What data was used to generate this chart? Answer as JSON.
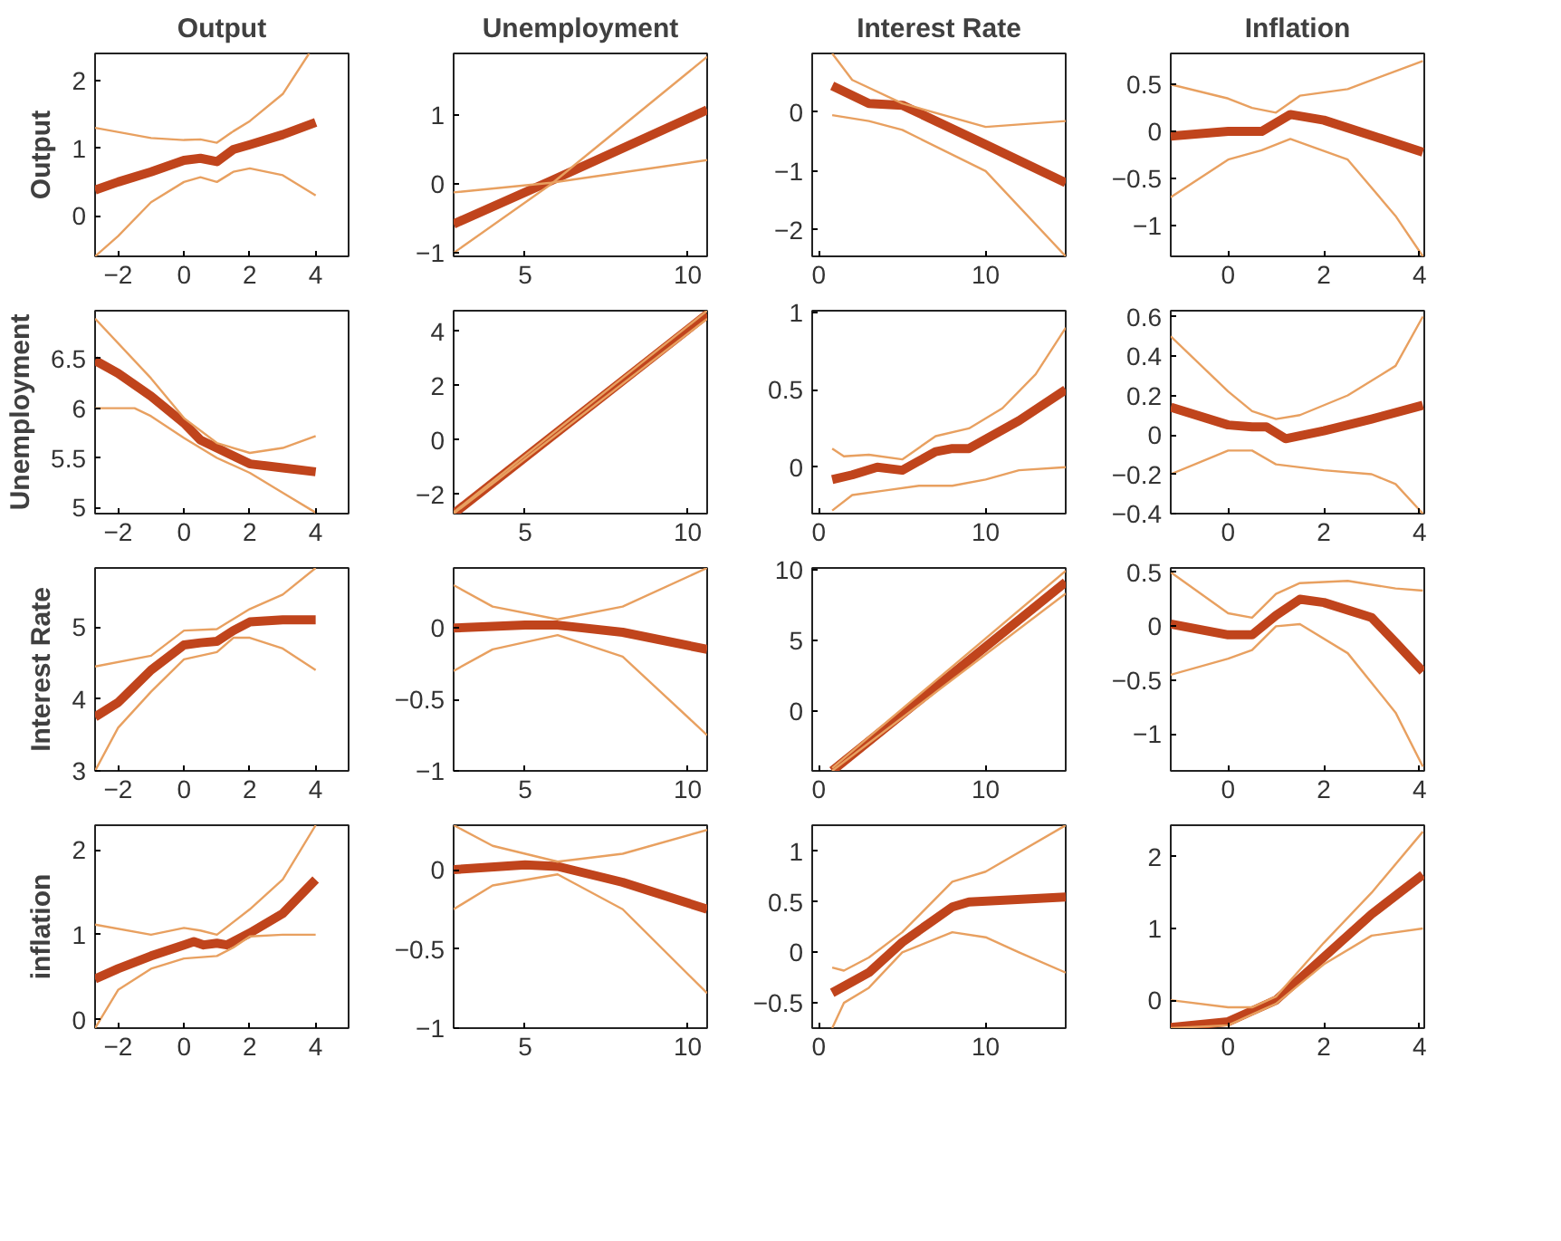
{
  "chart_data": [
    {
      "type": "line",
      "title": "Output",
      "ylabel": "Output",
      "xlim": [
        -2.7,
        5
      ],
      "xticks": [
        -2,
        0,
        2,
        4
      ],
      "ylim": [
        -0.6,
        2.4
      ],
      "yticks": [
        0,
        1,
        2
      ],
      "series": [
        {
          "color": "#c0441c",
          "x": [
            -2.7,
            -2,
            -1,
            0,
            0.5,
            1,
            1.5,
            2,
            3,
            4
          ],
          "values": [
            0.38,
            0.5,
            0.65,
            0.82,
            0.85,
            0.8,
            0.98,
            1.05,
            1.2,
            1.38
          ]
        },
        {
          "color": "#e8a060",
          "x": [
            -2.7,
            -1,
            0,
            0.5,
            1,
            1.5,
            2,
            3,
            3.8
          ],
          "values": [
            1.3,
            1.15,
            1.12,
            1.13,
            1.08,
            1.25,
            1.4,
            1.8,
            2.4
          ]
        },
        {
          "color": "#e8a060",
          "x": [
            -2.7,
            -2,
            -1,
            0,
            0.5,
            1,
            1.5,
            2,
            3,
            4
          ],
          "values": [
            -0.6,
            -0.3,
            0.2,
            0.5,
            0.57,
            0.5,
            0.65,
            0.7,
            0.6,
            0.3
          ]
        }
      ]
    },
    {
      "type": "line",
      "title": "Unemployment",
      "xlim": [
        2.8,
        10.6
      ],
      "xticks": [
        5,
        10
      ],
      "ylim": [
        -1.05,
        1.9
      ],
      "yticks": [
        -1,
        0,
        1
      ],
      "series": [
        {
          "color": "#c0441c",
          "x": [
            2.8,
            5.8,
            10.6
          ],
          "values": [
            -0.58,
            0.05,
            1.08
          ]
        },
        {
          "color": "#e8a060",
          "x": [
            2.8,
            5.8,
            10.6
          ],
          "values": [
            -0.12,
            0.02,
            0.35
          ]
        },
        {
          "color": "#e8a060",
          "x": [
            2.8,
            5.8,
            10.6
          ],
          "values": [
            -1.0,
            0.0,
            1.85
          ]
        }
      ]
    },
    {
      "type": "line",
      "title": "Interest Rate",
      "xlim": [
        -0.4,
        14.8
      ],
      "xticks": [
        0,
        10
      ],
      "ylim": [
        -2.45,
        1.0
      ],
      "yticks": [
        -2,
        -1,
        0
      ],
      "series": [
        {
          "color": "#c0441c",
          "x": [
            0.8,
            3,
            5,
            10,
            14.8
          ],
          "values": [
            0.45,
            0.15,
            0.12,
            -0.55,
            -1.2
          ]
        },
        {
          "color": "#e8a060",
          "x": [
            0.8,
            2,
            5,
            10,
            14.8
          ],
          "values": [
            1.0,
            0.55,
            0.15,
            -0.25,
            -0.15
          ]
        },
        {
          "color": "#e8a060",
          "x": [
            0.8,
            3,
            5,
            10,
            14.8
          ],
          "values": [
            -0.05,
            -0.15,
            -0.3,
            -1.0,
            -2.45
          ]
        }
      ]
    },
    {
      "type": "line",
      "title": "Inflation",
      "xlim": [
        -1.2,
        4.1
      ],
      "xticks": [
        0,
        2,
        4
      ],
      "ylim": [
        -1.33,
        0.83
      ],
      "yticks": [
        -1,
        -0.5,
        0,
        0.5
      ],
      "series": [
        {
          "color": "#c0441c",
          "x": [
            -1.2,
            0,
            0.7,
            1.3,
            2,
            4.07
          ],
          "values": [
            -0.05,
            0.0,
            0.0,
            0.18,
            0.12,
            -0.22
          ]
        },
        {
          "color": "#e8a060",
          "x": [
            -1.2,
            0,
            0.5,
            1,
            1.5,
            2.5,
            4.07
          ],
          "values": [
            0.5,
            0.35,
            0.25,
            0.2,
            0.38,
            0.45,
            0.75
          ]
        },
        {
          "color": "#e8a060",
          "x": [
            -1.2,
            0,
            0.7,
            1.3,
            2.5,
            3.5,
            4.07
          ],
          "values": [
            -0.7,
            -0.3,
            -0.2,
            -0.08,
            -0.3,
            -0.9,
            -1.33
          ]
        }
      ]
    },
    {
      "type": "line",
      "ylabel": "Unemployment",
      "xlim": [
        -2.7,
        5
      ],
      "xticks": [
        -2,
        0,
        2,
        4
      ],
      "ylim": [
        4.94,
        6.98
      ],
      "yticks": [
        5,
        5.5,
        6,
        6.5
      ],
      "series": [
        {
          "color": "#c0441c",
          "x": [
            -2.7,
            -2,
            -1,
            0,
            0.5,
            1,
            2,
            3,
            4
          ],
          "values": [
            6.48,
            6.35,
            6.12,
            5.85,
            5.68,
            5.6,
            5.44,
            5.4,
            5.36
          ]
        },
        {
          "color": "#e8a060",
          "x": [
            -2.7,
            -1,
            0,
            1,
            2,
            3,
            4
          ],
          "values": [
            6.9,
            6.3,
            5.9,
            5.65,
            5.55,
            5.6,
            5.72
          ]
        },
        {
          "color": "#e8a060",
          "x": [
            -2.7,
            -1.5,
            -1,
            0,
            1,
            2,
            3,
            4
          ],
          "values": [
            6.0,
            6.0,
            5.92,
            5.7,
            5.5,
            5.35,
            5.15,
            4.95
          ]
        }
      ]
    },
    {
      "type": "line",
      "xlim": [
        2.8,
        10.6
      ],
      "xticks": [
        5,
        10
      ],
      "ylim": [
        -2.7,
        4.75
      ],
      "yticks": [
        -2,
        0,
        2,
        4
      ],
      "series": [
        {
          "color": "#c0441c",
          "x": [
            2.8,
            10.6
          ],
          "values": [
            -2.7,
            4.62
          ]
        },
        {
          "color": "#e8a060",
          "x": [
            2.8,
            10.6
          ],
          "values": [
            -2.7,
            4.45
          ]
        },
        {
          "color": "#e8a060",
          "x": [
            2.8,
            10.6
          ],
          "values": [
            -2.65,
            4.75
          ]
        }
      ]
    },
    {
      "type": "line",
      "xlim": [
        -0.4,
        14.8
      ],
      "xticks": [
        0,
        10
      ],
      "ylim": [
        -0.3,
        1.01
      ],
      "yticks": [
        0,
        0.5,
        1
      ],
      "series": [
        {
          "color": "#c0441c",
          "x": [
            0.8,
            2,
            3.5,
            5,
            7,
            8,
            9,
            10,
            12,
            14.8
          ],
          "values": [
            -0.08,
            -0.05,
            0.0,
            -0.02,
            0.1,
            0.12,
            0.12,
            0.18,
            0.3,
            0.5
          ]
        },
        {
          "color": "#e8a060",
          "x": [
            0.8,
            1.5,
            3,
            5,
            7,
            9,
            11,
            13,
            14.8
          ],
          "values": [
            0.12,
            0.07,
            0.08,
            0.05,
            0.2,
            0.25,
            0.38,
            0.6,
            0.9
          ]
        },
        {
          "color": "#e8a060",
          "x": [
            0.8,
            2,
            4,
            6,
            8,
            10,
            12,
            14.8
          ],
          "values": [
            -0.28,
            -0.18,
            -0.15,
            -0.12,
            -0.12,
            -0.08,
            -0.02,
            0.0
          ]
        }
      ]
    },
    {
      "type": "line",
      "xlim": [
        -1.2,
        4.1
      ],
      "xticks": [
        0,
        2,
        4
      ],
      "ylim": [
        -0.4,
        0.63
      ],
      "yticks": [
        -0.4,
        -0.2,
        0,
        0.2,
        0.4,
        0.6
      ],
      "series": [
        {
          "color": "#c0441c",
          "x": [
            -1.2,
            0,
            0.5,
            0.8,
            1.2,
            2,
            3,
            4.07
          ],
          "values": [
            0.14,
            0.05,
            0.04,
            0.04,
            -0.02,
            0.02,
            0.08,
            0.15
          ]
        },
        {
          "color": "#e8a060",
          "x": [
            -1.2,
            0,
            0.5,
            1,
            1.5,
            2.5,
            3.5,
            4.07
          ],
          "values": [
            0.5,
            0.22,
            0.12,
            0.08,
            0.1,
            0.2,
            0.35,
            0.6
          ]
        },
        {
          "color": "#e8a060",
          "x": [
            -1.2,
            0,
            0.5,
            1,
            2,
            3,
            3.5,
            4.07
          ],
          "values": [
            -0.2,
            -0.08,
            -0.08,
            -0.15,
            -0.18,
            -0.2,
            -0.25,
            -0.4
          ]
        }
      ]
    },
    {
      "type": "line",
      "ylabel": "Interest Rate",
      "xlim": [
        -2.7,
        5
      ],
      "xticks": [
        -2,
        0,
        2,
        4
      ],
      "ylim": [
        3.0,
        5.82
      ],
      "yticks": [
        3,
        4,
        5
      ],
      "series": [
        {
          "color": "#c0441c",
          "x": [
            -2.7,
            -2,
            -1,
            0,
            0.5,
            1,
            1.5,
            2,
            3,
            4
          ],
          "values": [
            3.75,
            3.95,
            4.4,
            4.75,
            4.78,
            4.8,
            4.95,
            5.07,
            5.1,
            5.1
          ]
        },
        {
          "color": "#e8a060",
          "x": [
            -2.7,
            -1,
            0,
            1,
            2,
            3,
            4
          ],
          "values": [
            4.45,
            4.6,
            4.95,
            4.97,
            5.25,
            5.45,
            5.82
          ]
        },
        {
          "color": "#e8a060",
          "x": [
            -2.7,
            -2,
            -1,
            0,
            1,
            1.5,
            2,
            3,
            4
          ],
          "values": [
            3.0,
            3.6,
            4.1,
            4.55,
            4.65,
            4.85,
            4.85,
            4.7,
            4.4
          ]
        }
      ]
    },
    {
      "type": "line",
      "xlim": [
        2.8,
        10.6
      ],
      "xticks": [
        5,
        10
      ],
      "ylim": [
        -1,
        0.42
      ],
      "yticks": [
        -1,
        -0.5,
        0
      ],
      "series": [
        {
          "color": "#c0441c",
          "x": [
            2.8,
            5,
            6,
            8,
            10.6
          ],
          "values": [
            0.0,
            0.02,
            0.02,
            -0.03,
            -0.15
          ]
        },
        {
          "color": "#e8a060",
          "x": [
            2.8,
            4,
            6,
            8,
            10.6
          ],
          "values": [
            0.3,
            0.15,
            0.06,
            0.15,
            0.42
          ]
        },
        {
          "color": "#e8a060",
          "x": [
            2.8,
            4,
            6,
            8,
            10.6
          ],
          "values": [
            -0.3,
            -0.15,
            -0.05,
            -0.2,
            -0.75
          ]
        }
      ]
    },
    {
      "type": "line",
      "xlim": [
        -0.4,
        14.8
      ],
      "xticks": [
        0,
        10
      ],
      "ylim": [
        -4.2,
        10.1
      ],
      "yticks": [
        0,
        5,
        10
      ],
      "series": [
        {
          "color": "#c0441c",
          "x": [
            0.8,
            14.8
          ],
          "values": [
            -4.2,
            9.1
          ]
        },
        {
          "color": "#e8a060",
          "x": [
            0.8,
            14.8
          ],
          "values": [
            -4.2,
            8.3
          ]
        },
        {
          "color": "#e8a060",
          "x": [
            0.8,
            14.8
          ],
          "values": [
            -4.0,
            9.9
          ]
        }
      ]
    },
    {
      "type": "line",
      "xlim": [
        -1.2,
        4.1
      ],
      "xticks": [
        0,
        2,
        4
      ],
      "ylim": [
        -1.34,
        0.54
      ],
      "yticks": [
        -1,
        -0.5,
        0,
        0.5
      ],
      "series": [
        {
          "color": "#c0441c",
          "x": [
            -1.2,
            0,
            0.5,
            1,
            1.5,
            2,
            3,
            3.5,
            4.07
          ],
          "values": [
            0.02,
            -0.08,
            -0.08,
            0.1,
            0.25,
            0.22,
            0.08,
            -0.15,
            -0.42
          ]
        },
        {
          "color": "#e8a060",
          "x": [
            -1.2,
            0,
            0.5,
            1,
            1.5,
            2.5,
            3.5,
            4.07
          ],
          "values": [
            0.5,
            0.12,
            0.08,
            0.3,
            0.4,
            0.42,
            0.35,
            0.33
          ]
        },
        {
          "color": "#e8a060",
          "x": [
            -1.2,
            0,
            0.5,
            1,
            1.5,
            2.5,
            3.5,
            4.07
          ],
          "values": [
            -0.45,
            -0.3,
            -0.22,
            0.0,
            0.02,
            -0.25,
            -0.8,
            -1.3
          ]
        }
      ]
    },
    {
      "type": "line",
      "ylabel": "inflation",
      "xlim": [
        -2.7,
        5
      ],
      "xticks": [
        -2,
        0,
        2,
        4
      ],
      "ylim": [
        -0.1,
        2.29
      ],
      "yticks": [
        0,
        1,
        2
      ],
      "series": [
        {
          "color": "#c0441c",
          "x": [
            -2.7,
            -2,
            -1,
            0,
            0.3,
            0.6,
            1,
            1.3,
            2,
            3,
            4
          ],
          "values": [
            0.48,
            0.6,
            0.75,
            0.88,
            0.92,
            0.88,
            0.9,
            0.88,
            1.02,
            1.25,
            1.65
          ]
        },
        {
          "color": "#e8a060",
          "x": [
            -2.7,
            -1,
            0,
            0.5,
            1,
            1.5,
            2,
            3,
            4
          ],
          "values": [
            1.12,
            1.0,
            1.08,
            1.05,
            1.0,
            1.15,
            1.3,
            1.65,
            2.29
          ]
        },
        {
          "color": "#e8a060",
          "x": [
            -2.7,
            -2,
            -1,
            0,
            1,
            1.5,
            2,
            3,
            4
          ],
          "values": [
            -0.1,
            0.35,
            0.6,
            0.72,
            0.75,
            0.85,
            0.98,
            1.0,
            1.0
          ]
        }
      ]
    },
    {
      "type": "line",
      "xlim": [
        2.8,
        10.6
      ],
      "xticks": [
        5,
        10
      ],
      "ylim": [
        -1,
        0.28
      ],
      "yticks": [
        -1,
        -0.5,
        0
      ],
      "series": [
        {
          "color": "#c0441c",
          "x": [
            2.8,
            5,
            6,
            8,
            10.6
          ],
          "values": [
            0.0,
            0.03,
            0.02,
            -0.08,
            -0.25
          ]
        },
        {
          "color": "#e8a060",
          "x": [
            2.8,
            4,
            6,
            8,
            10.6
          ],
          "values": [
            0.28,
            0.15,
            0.05,
            0.1,
            0.25
          ]
        },
        {
          "color": "#e8a060",
          "x": [
            2.8,
            4,
            6,
            8,
            10.6
          ],
          "values": [
            -0.25,
            -0.1,
            -0.03,
            -0.25,
            -0.78
          ]
        }
      ]
    },
    {
      "type": "line",
      "xlim": [
        -0.4,
        14.8
      ],
      "xticks": [
        0,
        10
      ],
      "ylim": [
        -0.75,
        1.26
      ],
      "yticks": [
        -0.5,
        0,
        0.5,
        1
      ],
      "series": [
        {
          "color": "#c0441c",
          "x": [
            0.8,
            3,
            5,
            8,
            9,
            14.8
          ],
          "values": [
            -0.4,
            -0.2,
            0.1,
            0.45,
            0.5,
            0.55
          ]
        },
        {
          "color": "#e8a060",
          "x": [
            0.8,
            1.5,
            3,
            5,
            8,
            10,
            14.8
          ],
          "values": [
            -0.15,
            -0.18,
            -0.05,
            0.2,
            0.7,
            0.8,
            1.26
          ]
        },
        {
          "color": "#e8a060",
          "x": [
            0.8,
            1.5,
            3,
            5,
            8,
            10,
            12,
            14.8
          ],
          "values": [
            -0.75,
            -0.5,
            -0.35,
            0.0,
            0.2,
            0.15,
            0.0,
            -0.2
          ]
        }
      ]
    },
    {
      "type": "line",
      "xlim": [
        -1.2,
        4.1
      ],
      "xticks": [
        0,
        2,
        4
      ],
      "ylim": [
        -0.39,
        2.44
      ],
      "yticks": [
        0,
        1,
        2
      ],
      "series": [
        {
          "color": "#c0441c",
          "x": [
            -1.2,
            0,
            0.5,
            1,
            2,
            3,
            4.07
          ],
          "values": [
            -0.38,
            -0.3,
            -0.15,
            0.0,
            0.6,
            1.2,
            1.75
          ]
        },
        {
          "color": "#e8a060",
          "x": [
            -1.2,
            0,
            0.5,
            1,
            2,
            3,
            4.07
          ],
          "values": [
            0.0,
            -0.1,
            -0.1,
            0.05,
            0.8,
            1.5,
            2.35
          ]
        },
        {
          "color": "#e8a060",
          "x": [
            -1.2,
            0,
            0.5,
            1,
            2,
            3,
            4.07
          ],
          "values": [
            -0.39,
            -0.35,
            -0.2,
            -0.05,
            0.5,
            0.9,
            1.0
          ]
        }
      ]
    }
  ]
}
